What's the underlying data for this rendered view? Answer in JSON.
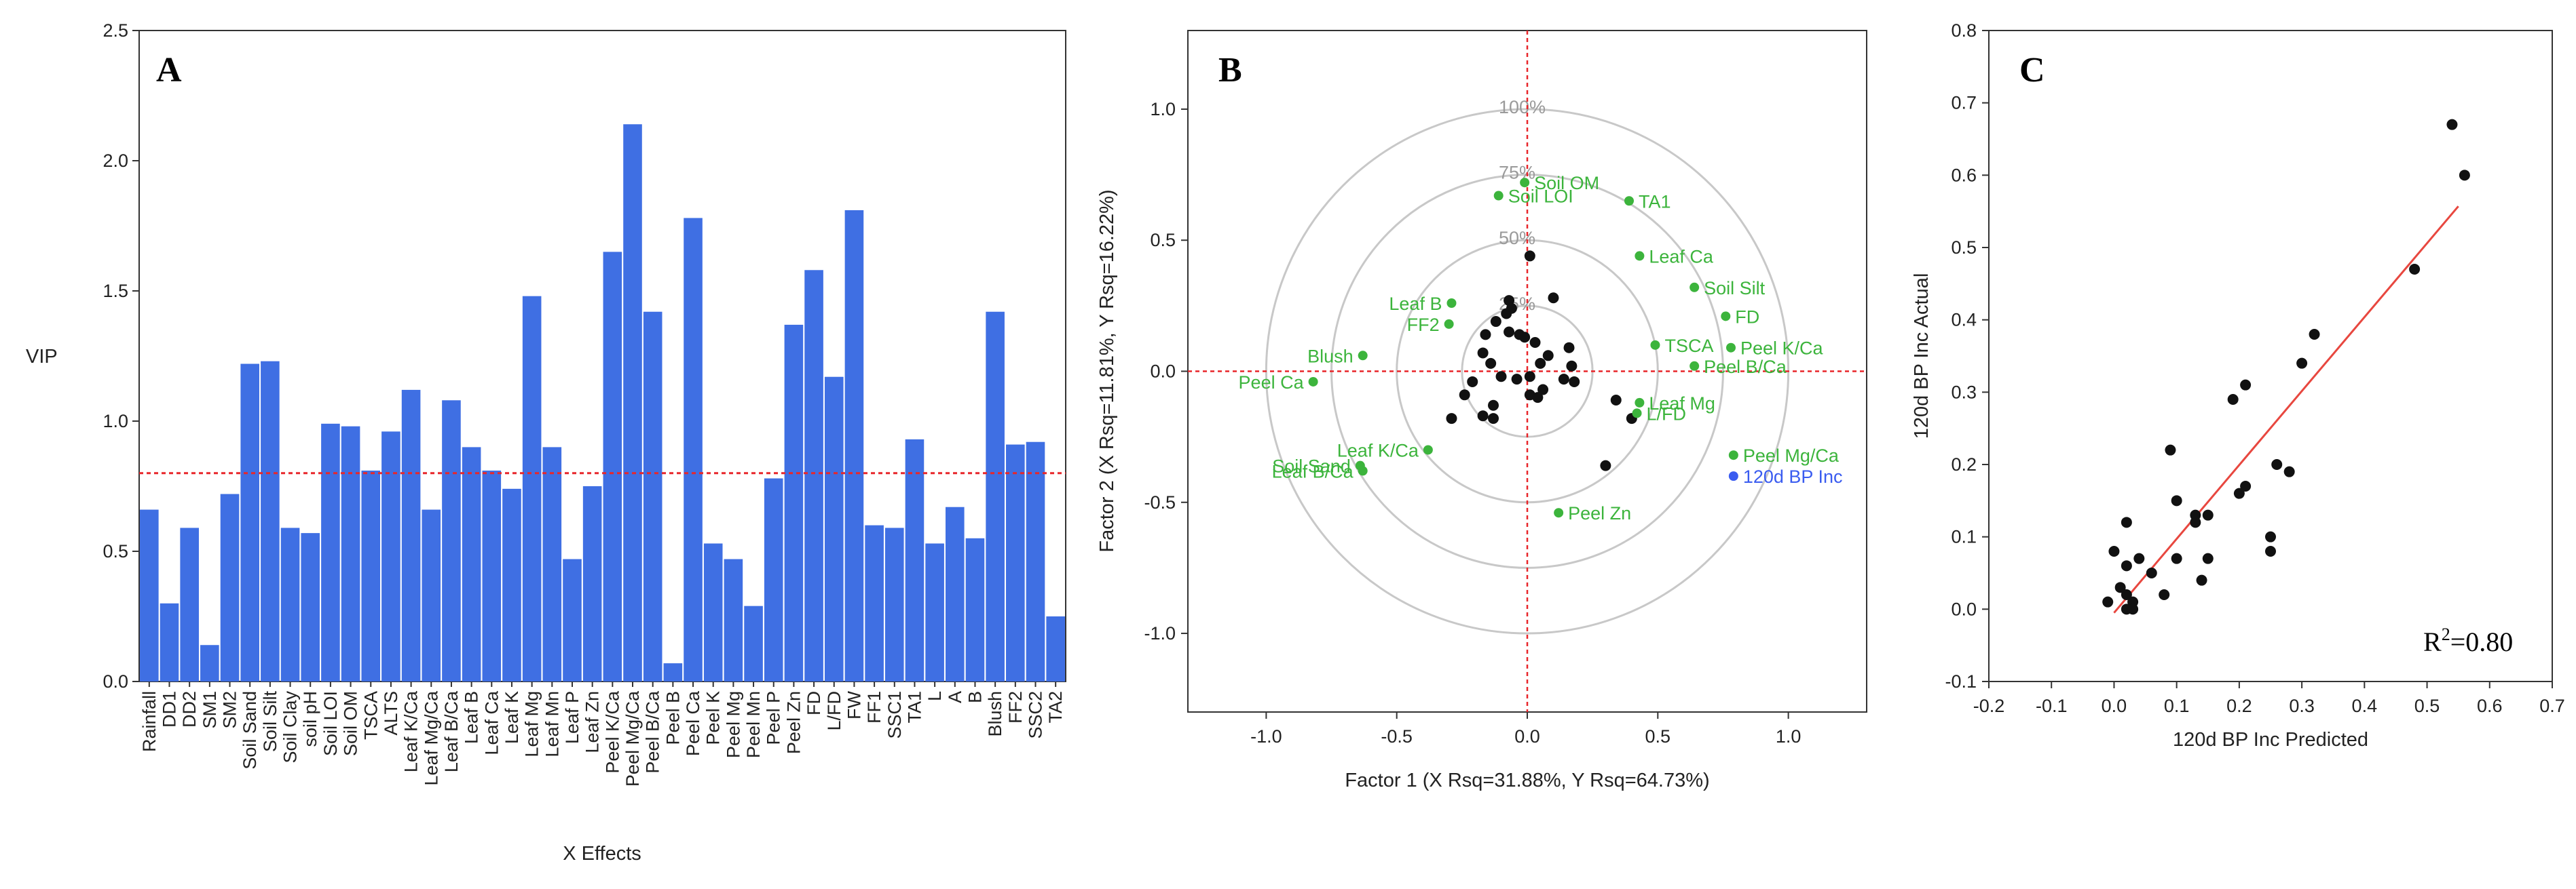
{
  "chart_data": [
    {
      "panel": "A",
      "type": "bar",
      "xlabel": "X Effects",
      "ylabel": "VIP",
      "ylim": [
        0,
        2.5
      ],
      "yticks": [
        "0.0",
        "0.5",
        "1.0",
        "1.5",
        "2.0",
        "2.5"
      ],
      "threshold": 0.8,
      "bar_color": "#3f6fe3",
      "threshold_color": "#e8262a",
      "categories": [
        "Rainfall",
        "DD1",
        "DD2",
        "SM1",
        "SM2",
        "Soil Sand",
        "Soil Silt",
        "Soil Clay",
        "soil pH",
        "Soil LOI",
        "Soil OM",
        "TSCA",
        "ALTS",
        "Leaf K/Ca",
        "Leaf Mg/Ca",
        "Leaf B/Ca",
        "Leaf B",
        "Leaf Ca",
        "Leaf K",
        "Leaf Mg",
        "Leaf Mn",
        "Leaf P",
        "Leaf Zn",
        "Peel K/Ca",
        "Peel Mg/Ca",
        "Peel B/Ca",
        "Peel B",
        "Peel Ca",
        "Peel K",
        "Peel Mg",
        "Peel Mn",
        "Peel P",
        "Peel Zn",
        "FD",
        "L/FD",
        "FW",
        "FF1",
        "SSC1",
        "TA1",
        "L",
        "A",
        "B",
        "Blush",
        "FF2",
        "SSC2",
        "TA2"
      ],
      "values": [
        0.66,
        0.3,
        0.59,
        0.14,
        0.72,
        1.22,
        1.23,
        0.59,
        0.57,
        0.99,
        0.98,
        0.81,
        0.96,
        1.12,
        0.66,
        1.08,
        0.9,
        0.81,
        0.74,
        1.48,
        0.9,
        0.47,
        0.75,
        1.65,
        2.14,
        1.42,
        0.07,
        1.78,
        0.53,
        0.47,
        0.29,
        0.78,
        1.37,
        1.58,
        1.17,
        1.81,
        0.6,
        0.59,
        0.93,
        0.53,
        0.67,
        0.55,
        1.42,
        0.91,
        0.92,
        0.25
      ]
    },
    {
      "panel": "B",
      "type": "scatter",
      "xlabel": "Factor 1 (X Rsq=31.88%, Y Rsq=64.73%)",
      "ylabel": "Factor 2 (X Rsq=11.81%, Y Rsq=16.22%)",
      "xlim": [
        -1.3,
        1.3
      ],
      "ylim": [
        -1.3,
        1.3
      ],
      "xticks": [
        "-1.0",
        "-0.5",
        "0.0",
        "0.5",
        "1.0"
      ],
      "yticks": [
        "-1.0",
        "-0.5",
        "0.0",
        "0.5",
        "1.0"
      ],
      "circles": [
        {
          "r": 0.25,
          "label": "25%"
        },
        {
          "r": 0.5,
          "label": "50%"
        },
        {
          "r": 0.75,
          "label": "75%"
        },
        {
          "r": 1.0,
          "label": "100%"
        }
      ],
      "loading_color": "#3cb43c",
      "response_color": "#3a5cf0",
      "score_color": "#111111",
      "x_loadings": [
        {
          "label": "Soil OM",
          "x": -0.01,
          "y": 0.72
        },
        {
          "label": "Soil LOI",
          "x": -0.11,
          "y": 0.67
        },
        {
          "label": "TA1",
          "x": 0.39,
          "y": 0.65
        },
        {
          "label": "Leaf Ca",
          "x": 0.43,
          "y": 0.44
        },
        {
          "label": "Soil Silt",
          "x": 0.64,
          "y": 0.32
        },
        {
          "label": "Leaf B",
          "x": -0.29,
          "y": 0.26
        },
        {
          "label": "FF2",
          "x": -0.3,
          "y": 0.18
        },
        {
          "label": "FD",
          "x": 0.76,
          "y": 0.21
        },
        {
          "label": "Peel K/Ca",
          "x": 0.78,
          "y": 0.09
        },
        {
          "label": "TSCA",
          "x": 0.49,
          "y": 0.1
        },
        {
          "label": "Peel B/Ca",
          "x": 0.64,
          "y": 0.02
        },
        {
          "label": "Blush",
          "x": -0.63,
          "y": 0.06
        },
        {
          "label": "Peel Ca",
          "x": -0.82,
          "y": -0.04
        },
        {
          "label": "Leaf Mg",
          "x": 0.43,
          "y": -0.12
        },
        {
          "label": "L/FD",
          "x": 0.42,
          "y": -0.16
        },
        {
          "label": "Leaf K/Ca",
          "x": -0.38,
          "y": -0.3
        },
        {
          "label": "Soil Sand",
          "x": -0.64,
          "y": -0.36
        },
        {
          "label": "Leaf B/Ca",
          "x": -0.63,
          "y": -0.38
        },
        {
          "label": "Peel Mg/Ca",
          "x": 0.79,
          "y": -0.32
        },
        {
          "label": "Peel Zn",
          "x": 0.12,
          "y": -0.54
        }
      ],
      "y_loadings": [
        {
          "label": "120d BP Inc",
          "x": 0.79,
          "y": -0.4
        }
      ],
      "scores": [
        {
          "x": 0.01,
          "y": 0.44
        },
        {
          "x": 0.1,
          "y": 0.28
        },
        {
          "x": -0.07,
          "y": 0.27
        },
        {
          "x": -0.06,
          "y": 0.24
        },
        {
          "x": -0.08,
          "y": 0.22
        },
        {
          "x": -0.12,
          "y": 0.19
        },
        {
          "x": -0.16,
          "y": 0.14
        },
        {
          "x": -0.07,
          "y": 0.15
        },
        {
          "x": -0.03,
          "y": 0.14
        },
        {
          "x": -0.01,
          "y": 0.13
        },
        {
          "x": 0.03,
          "y": 0.11
        },
        {
          "x": 0.16,
          "y": 0.09
        },
        {
          "x": 0.08,
          "y": 0.06
        },
        {
          "x": -0.17,
          "y": 0.07
        },
        {
          "x": -0.14,
          "y": 0.03
        },
        {
          "x": 0.05,
          "y": 0.03
        },
        {
          "x": 0.17,
          "y": 0.02
        },
        {
          "x": -0.21,
          "y": -0.04
        },
        {
          "x": -0.1,
          "y": -0.02
        },
        {
          "x": 0.01,
          "y": -0.02
        },
        {
          "x": -0.04,
          "y": -0.03
        },
        {
          "x": 0.14,
          "y": -0.03
        },
        {
          "x": 0.18,
          "y": -0.04
        },
        {
          "x": 0.06,
          "y": -0.07
        },
        {
          "x": -0.24,
          "y": -0.09
        },
        {
          "x": 0.04,
          "y": -0.1
        },
        {
          "x": 0.01,
          "y": -0.09
        },
        {
          "x": -0.13,
          "y": -0.13
        },
        {
          "x": -0.17,
          "y": -0.17
        },
        {
          "x": -0.29,
          "y": -0.18
        },
        {
          "x": -0.13,
          "y": -0.18
        },
        {
          "x": 0.34,
          "y": -0.11
        },
        {
          "x": 0.4,
          "y": -0.18
        },
        {
          "x": 0.3,
          "y": -0.36
        }
      ],
      "axis_line_color": "#e8262a"
    },
    {
      "panel": "C",
      "type": "scatter",
      "xlabel": "120d BP Inc Predicted",
      "ylabel": "120d BP Inc Actual",
      "xlim": [
        -0.2,
        0.7
      ],
      "ylim": [
        -0.1,
        0.8
      ],
      "xticks": [
        "-0.2",
        "-0.1",
        "0.0",
        "0.1",
        "0.2",
        "0.3",
        "0.4",
        "0.5",
        "0.6",
        "0.7"
      ],
      "yticks": [
        "-0.1",
        "0.0",
        "0.1",
        "0.2",
        "0.3",
        "0.4",
        "0.5",
        "0.6",
        "0.7",
        "0.8"
      ],
      "r2_label": "R",
      "r2_sup": "2",
      "r2_value": "=0.80",
      "fit_line": {
        "x": [
          0.0,
          0.55
        ],
        "y": [
          -0.005,
          0.557
        ],
        "color": "#e8473f"
      },
      "points": [
        {
          "x": 0.54,
          "y": 0.67
        },
        {
          "x": 0.56,
          "y": 0.6
        },
        {
          "x": 0.48,
          "y": 0.47
        },
        {
          "x": 0.32,
          "y": 0.38
        },
        {
          "x": 0.3,
          "y": 0.34
        },
        {
          "x": 0.21,
          "y": 0.31
        },
        {
          "x": 0.19,
          "y": 0.29
        },
        {
          "x": 0.09,
          "y": 0.22
        },
        {
          "x": 0.26,
          "y": 0.2
        },
        {
          "x": 0.28,
          "y": 0.19
        },
        {
          "x": 0.21,
          "y": 0.17
        },
        {
          "x": 0.2,
          "y": 0.16
        },
        {
          "x": 0.1,
          "y": 0.15
        },
        {
          "x": 0.13,
          "y": 0.13
        },
        {
          "x": 0.15,
          "y": 0.13
        },
        {
          "x": 0.13,
          "y": 0.12
        },
        {
          "x": 0.02,
          "y": 0.12
        },
        {
          "x": 0.25,
          "y": 0.1
        },
        {
          "x": 0.0,
          "y": 0.08
        },
        {
          "x": 0.25,
          "y": 0.08
        },
        {
          "x": 0.15,
          "y": 0.07
        },
        {
          "x": 0.1,
          "y": 0.07
        },
        {
          "x": 0.04,
          "y": 0.07
        },
        {
          "x": 0.02,
          "y": 0.06
        },
        {
          "x": 0.06,
          "y": 0.05
        },
        {
          "x": 0.14,
          "y": 0.04
        },
        {
          "x": 0.01,
          "y": 0.03
        },
        {
          "x": 0.02,
          "y": 0.02
        },
        {
          "x": 0.08,
          "y": 0.02
        },
        {
          "x": -0.01,
          "y": 0.01
        },
        {
          "x": 0.03,
          "y": 0.01
        },
        {
          "x": 0.02,
          "y": 0.0
        },
        {
          "x": 0.03,
          "y": 0.0
        }
      ]
    }
  ]
}
